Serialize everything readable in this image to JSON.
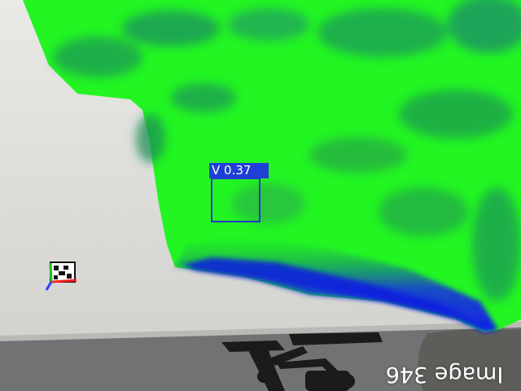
{
  "detection": {
    "label": "V 0.37",
    "box_color": "#2638c8",
    "label_bg": "#1f3fd6"
  },
  "caption": {
    "text": "Image 346",
    "orientation": "rotated 180 degrees"
  },
  "heatmap": {
    "colors": {
      "high": "#22ff22",
      "mid": "#1a9a4a",
      "low": "#1530e0"
    }
  },
  "marker": {
    "axes_colors": {
      "x": "#ff2020",
      "y": "#20c020",
      "z": "#2040ff"
    }
  },
  "colors": {
    "table_surface": "#d7d7d3",
    "wall": "#e6e6e2",
    "floor": "#6a6c6e",
    "chair": "#1a1a1a"
  }
}
